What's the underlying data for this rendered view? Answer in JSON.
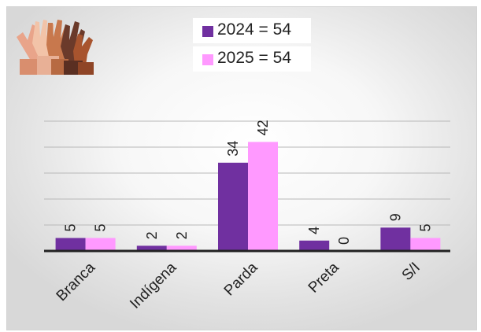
{
  "legend": {
    "items": [
      {
        "label": "2024 = 54",
        "color": "#7030a0"
      },
      {
        "label": "2025 = 54",
        "color": "#ff99ff"
      }
    ]
  },
  "logo": {
    "icon": "raised-hands-logo"
  },
  "chart_data": {
    "type": "bar",
    "categories": [
      "Branca",
      "Indígena",
      "Parda",
      "Preta",
      "S/I"
    ],
    "series": [
      {
        "name": "2024 = 54",
        "values": [
          5,
          2,
          34,
          4,
          9
        ],
        "color": "#7030a0"
      },
      {
        "name": "2025 = 54",
        "values": [
          5,
          2,
          42,
          0,
          5
        ],
        "color": "#ff99ff"
      }
    ],
    "ylim": [
      0,
      50
    ],
    "grid": true,
    "legend_position": "top-center",
    "data_labels": true
  }
}
